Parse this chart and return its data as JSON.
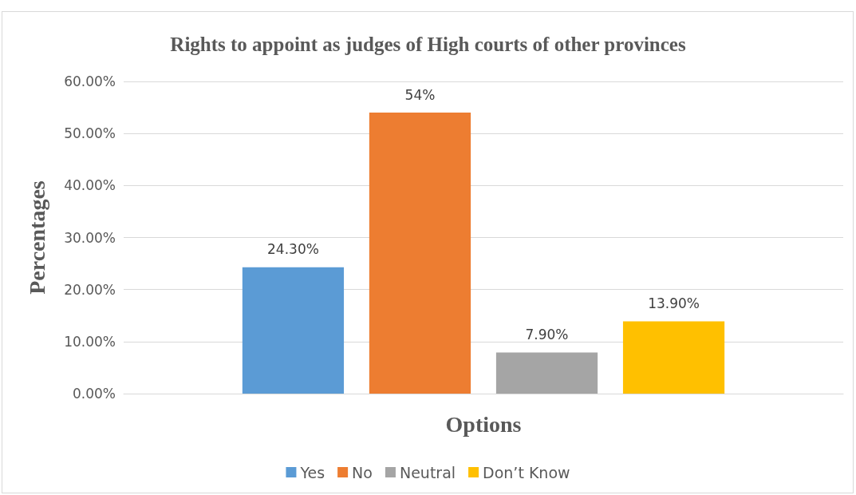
{
  "chart_data": {
    "type": "bar",
    "title": "Rights to appoint as judges of High courts of other provinces",
    "xlabel": "Options",
    "ylabel": "Percentages",
    "categories": [
      null
    ],
    "series": [
      {
        "name": "Yes",
        "color": "#5b9bd5",
        "values": [
          24.3
        ],
        "value_labels": [
          "24.30%"
        ]
      },
      {
        "name": "No",
        "color": "#ed7d31",
        "values": [
          54
        ],
        "value_labels": [
          "54%"
        ]
      },
      {
        "name": "Neutral",
        "color": "#a5a5a5",
        "values": [
          7.9
        ],
        "value_labels": [
          "7.90%"
        ]
      },
      {
        "name": "Don’t Know",
        "color": "#ffc000",
        "values": [
          13.9
        ],
        "value_labels": [
          "13.90%"
        ]
      }
    ],
    "ylim": [
      0,
      60
    ],
    "yticks": [
      {
        "value": 0,
        "label": "0.00%"
      },
      {
        "value": 10,
        "label": "10.00%"
      },
      {
        "value": 20,
        "label": "20.00%"
      },
      {
        "value": 30,
        "label": "30.00%"
      },
      {
        "value": 40,
        "label": "40.00%"
      },
      {
        "value": 50,
        "label": "50.00%"
      },
      {
        "value": 60,
        "label": "60.00%"
      }
    ],
    "grid": "y",
    "legend": "bottom"
  }
}
